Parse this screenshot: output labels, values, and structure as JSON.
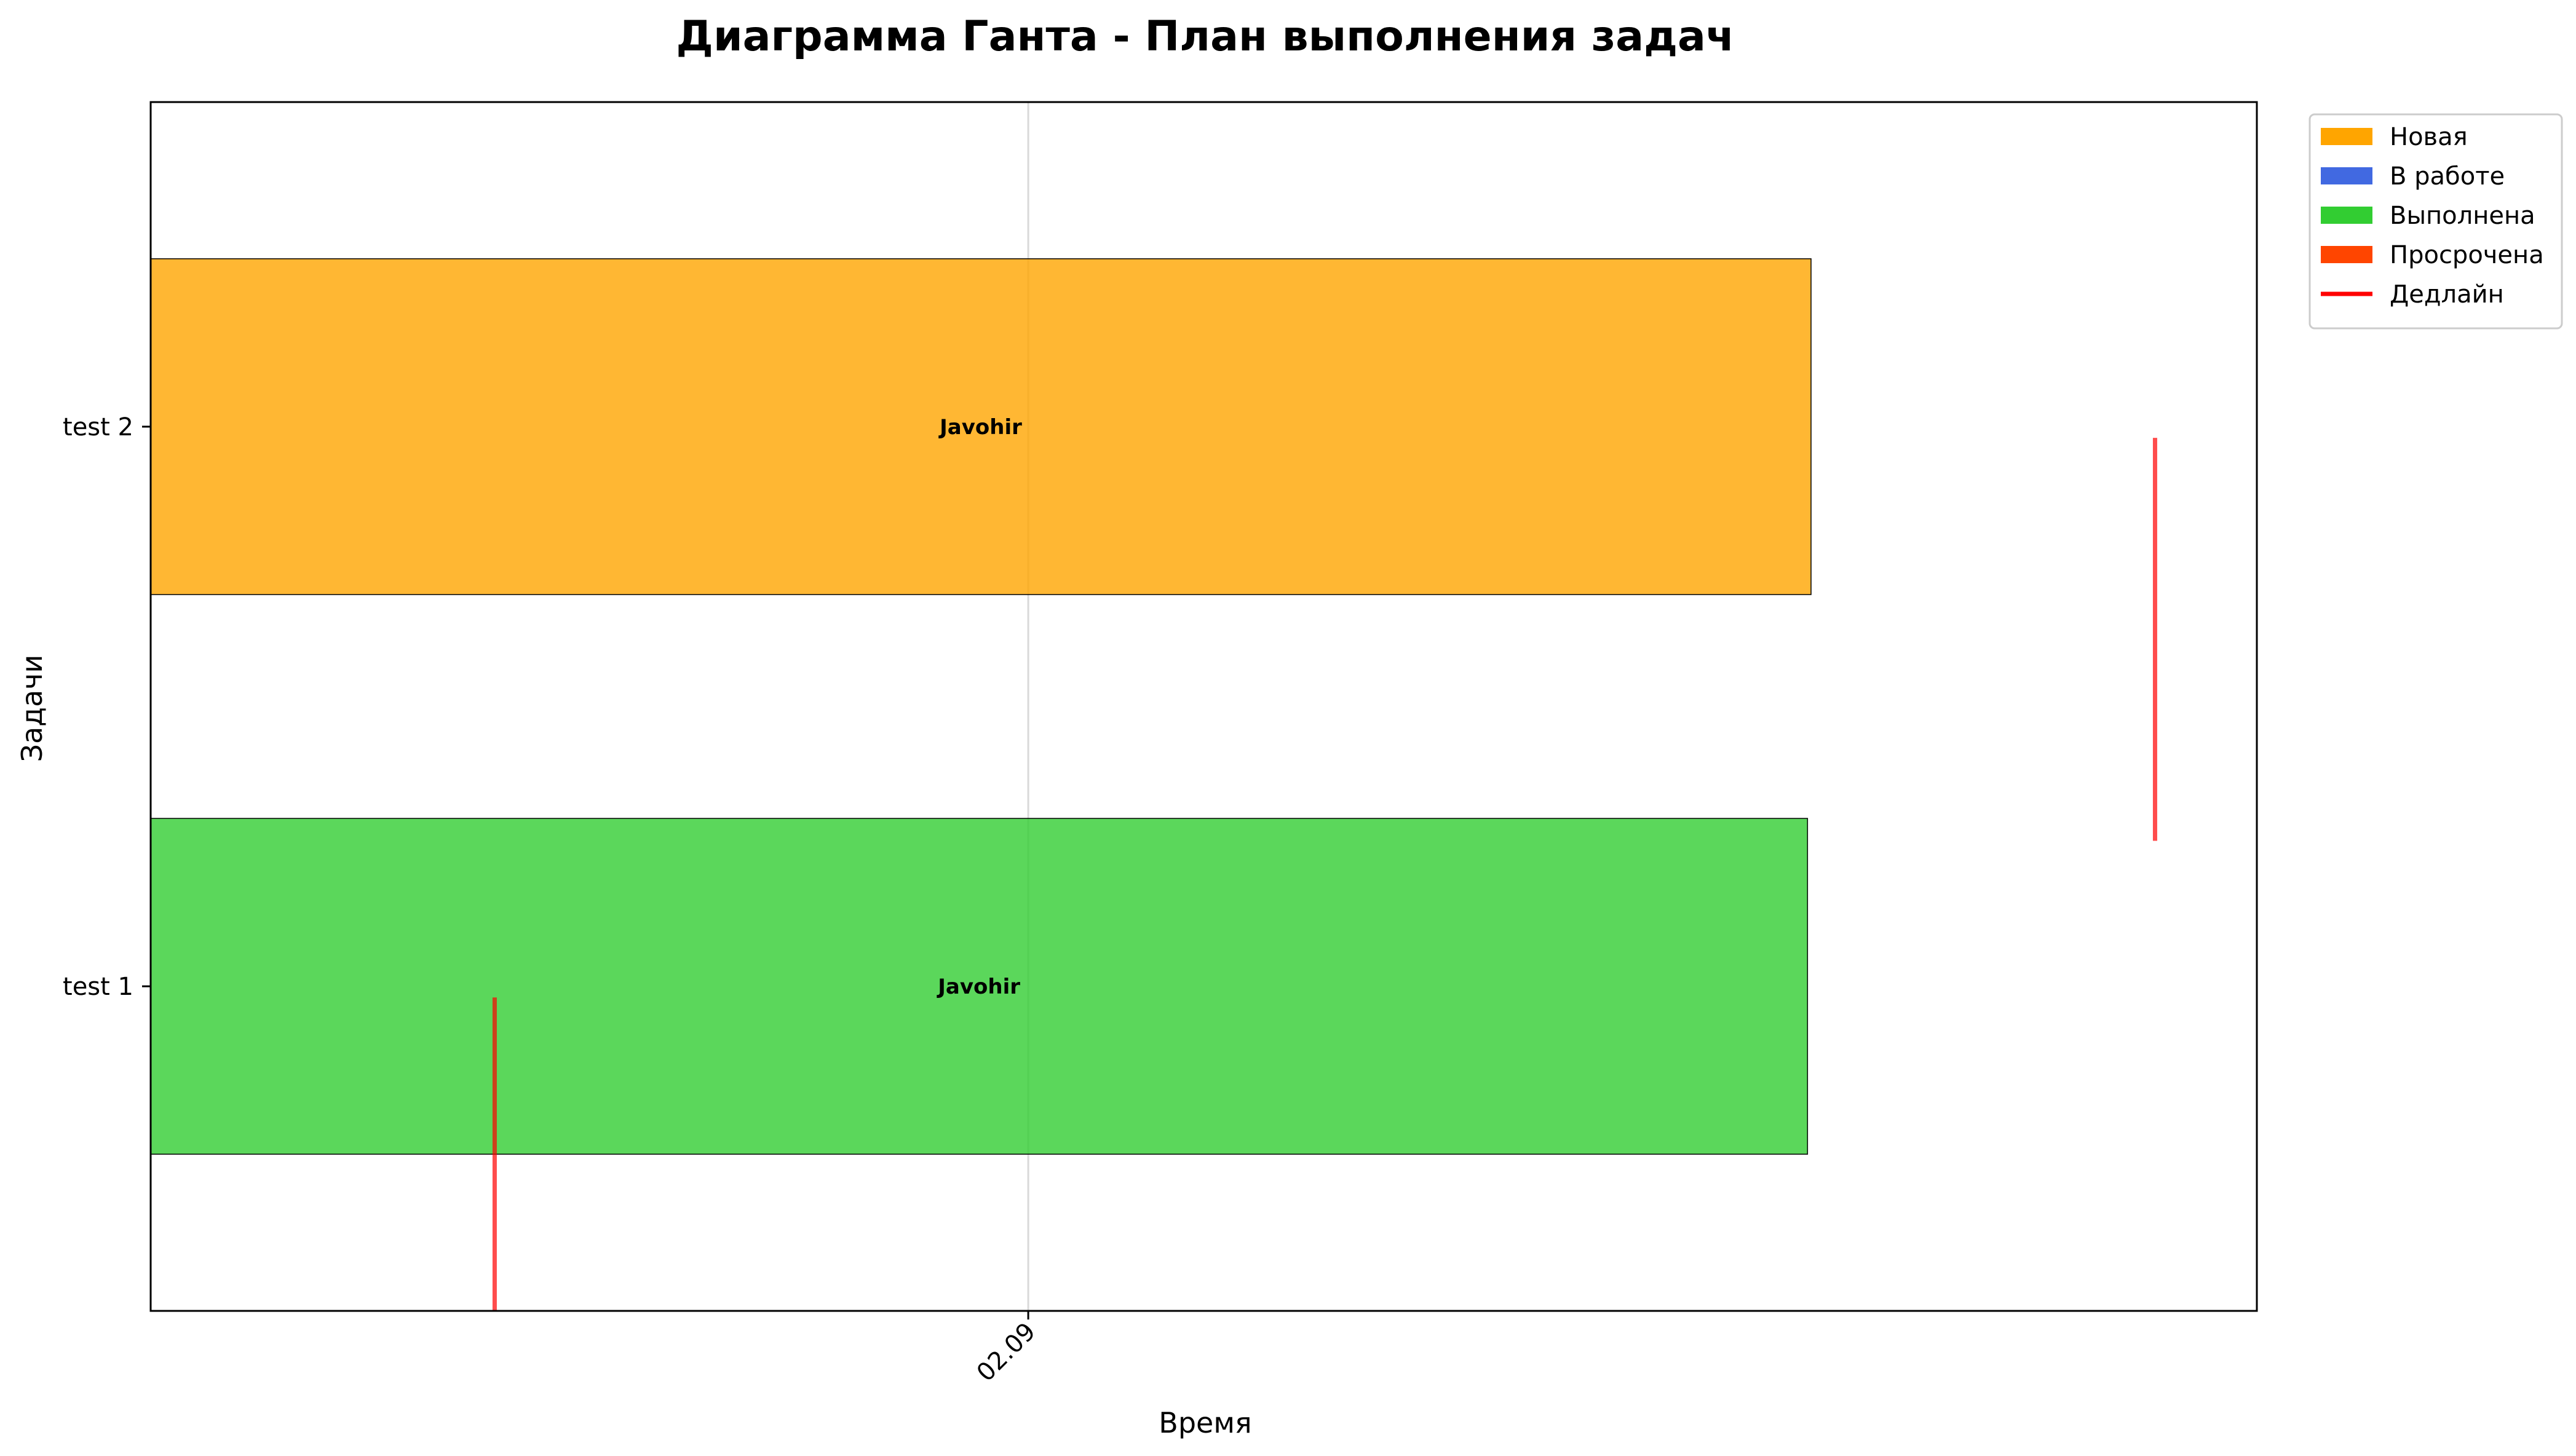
{
  "chart_data": {
    "type": "gantt",
    "title": "Диаграмма Ганта - План выполнения задач",
    "xlabel": "Время",
    "ylabel": "Задачи",
    "x_ticks": [
      {
        "label": "02.09",
        "value": 2.5
      }
    ],
    "xlim": [
      0,
      6
    ],
    "tasks": [
      {
        "name": "test 1",
        "assignee": "Javohir",
        "status": "Выполнена",
        "start": 0,
        "end": 4.72,
        "deadline": 0.98
      },
      {
        "name": "test 2",
        "assignee": "Javohir",
        "status": "Новая",
        "start": 0,
        "end": 4.73,
        "deadline": 5.71
      }
    ],
    "status_colors": {
      "Новая": "#FFA500",
      "В работе": "#4169E1",
      "Выполнена": "#32CD32",
      "Просрочена": "#FF4500"
    },
    "deadline_color": "#FF0000",
    "legend": {
      "position": "outside-top-right",
      "entries": [
        {
          "label": "Новая",
          "kind": "patch",
          "color": "#FFA500"
        },
        {
          "label": "В работе",
          "kind": "patch",
          "color": "#4169E1"
        },
        {
          "label": "Выполнена",
          "kind": "patch",
          "color": "#32CD32"
        },
        {
          "label": "Просрочена",
          "kind": "patch",
          "color": "#FF4500"
        },
        {
          "label": "Дедлайн",
          "kind": "line",
          "color": "#FF0000"
        }
      ]
    },
    "grid": "x"
  }
}
